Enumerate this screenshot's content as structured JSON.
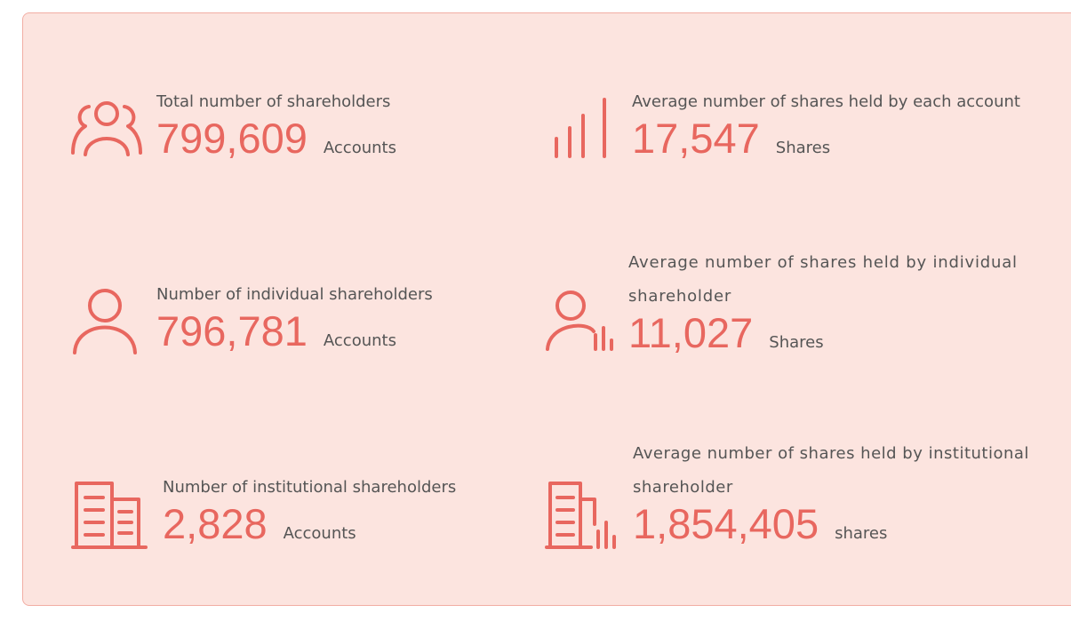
{
  "items": [
    {
      "label": "Total number of shareholders",
      "value": "799,609",
      "unit": "Accounts"
    },
    {
      "label": "Average number of shares held by each account",
      "value": "17,547",
      "unit": "Shares"
    },
    {
      "label": "Number of individual shareholders",
      "value": "796,781",
      "unit": "Accounts"
    },
    {
      "label": "Average number of shares held by individual shareholder",
      "value": "11,027",
      "unit": "Shares"
    },
    {
      "label": "Number of institutional shareholders",
      "value": "2,828",
      "unit": "Accounts"
    },
    {
      "label": "Average number of shares held by institutional shareholder",
      "value": "1,854,405",
      "unit": "shares"
    }
  ]
}
